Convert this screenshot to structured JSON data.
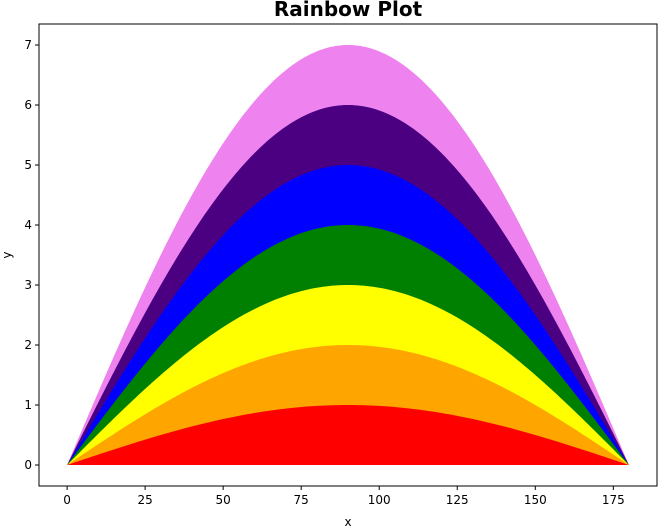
{
  "chart_data": {
    "type": "area",
    "title": "Rainbow Plot",
    "xlabel": "x",
    "ylabel": "y",
    "xlim": [
      -9,
      189
    ],
    "ylim": [
      -0.35,
      7.35
    ],
    "xticks": [
      0,
      25,
      50,
      75,
      100,
      125,
      150,
      175
    ],
    "yticks": [
      0,
      1,
      2,
      3,
      4,
      5,
      6,
      7
    ],
    "grid": false,
    "legend": "none",
    "curve": "y = k * sin(x degrees), x from 0 to 180",
    "x_range": [
      0,
      180
    ],
    "series": [
      {
        "amplitude": 7,
        "color": "#ee82ee"
      },
      {
        "amplitude": 6,
        "color": "#4b0082"
      },
      {
        "amplitude": 5,
        "color": "#0000ff"
      },
      {
        "amplitude": 4,
        "color": "#008000"
      },
      {
        "amplitude": 3,
        "color": "#ffff00"
      },
      {
        "amplitude": 2,
        "color": "#ffa500"
      },
      {
        "amplitude": 1,
        "color": "#ff0000"
      }
    ]
  }
}
